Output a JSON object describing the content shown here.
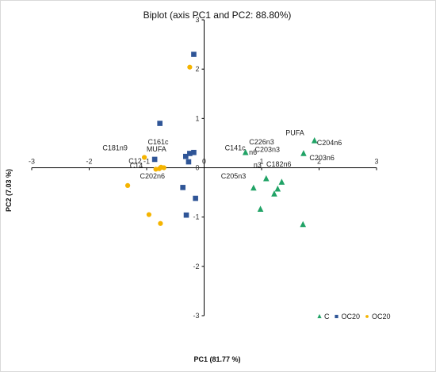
{
  "chart_data": {
    "type": "scatter",
    "title": "Biplot (axis PC1 and PC2: 88.80%)",
    "xlabel": "PC1 (81.77 %)",
    "ylabel": "PC2 (7.03 %)",
    "xlim": [
      -3,
      3
    ],
    "ylim": [
      -3,
      3
    ],
    "xticks": [
      "-3",
      "-2",
      "-1",
      "0",
      "1",
      "2",
      "3"
    ],
    "yticks": [
      "-3",
      "-2",
      "-1",
      "0",
      "1",
      "2",
      "3"
    ],
    "grid": false,
    "legend_position": "bottom-right",
    "series": [
      {
        "name": "C",
        "marker": "triangle",
        "color": "#21a366",
        "points": [
          [
            0.72,
            0.31
          ],
          [
            1.08,
            -0.22
          ],
          [
            0.86,
            -0.41
          ],
          [
            1.35,
            -0.29
          ],
          [
            1.28,
            -0.43
          ],
          [
            1.22,
            -0.53
          ],
          [
            0.98,
            -0.84
          ],
          [
            1.72,
            -1.15
          ],
          [
            1.92,
            0.55
          ],
          [
            1.73,
            0.29
          ]
        ]
      },
      {
        "name": "OC20",
        "marker": "square",
        "color": "#2f5597",
        "points": [
          [
            -0.18,
            2.3
          ],
          [
            -0.77,
            0.9
          ],
          [
            -0.86,
            0.17
          ],
          [
            -0.32,
            0.23
          ],
          [
            -0.25,
            0.29
          ],
          [
            -0.18,
            0.31
          ],
          [
            -0.27,
            0.12
          ],
          [
            -0.37,
            -0.4
          ],
          [
            -0.15,
            -0.62
          ],
          [
            -0.31,
            -0.96
          ]
        ]
      },
      {
        "name": "OC20",
        "marker": "circle",
        "color": "#f5b400",
        "points": [
          [
            -0.25,
            2.04
          ],
          [
            -1.04,
            0.21
          ],
          [
            -0.7,
            0.0
          ],
          [
            -0.75,
            0.01
          ],
          [
            -0.78,
            -0.02
          ],
          [
            -0.84,
            -0.03
          ],
          [
            -1.33,
            -0.36
          ],
          [
            -0.96,
            -0.95
          ],
          [
            -0.76,
            -1.13
          ]
        ]
      }
    ],
    "variables": [
      {
        "label": "C161c",
        "x": -0.8,
        "y": 0.52
      },
      {
        "label": "C181n9",
        "x": -1.55,
        "y": 0.4
      },
      {
        "label": "MUFA",
        "x": -0.83,
        "y": 0.38
      },
      {
        "label": "C12",
        "x": -1.2,
        "y": 0.14
      },
      {
        "label": "C14",
        "x": -1.18,
        "y": 0.04
      },
      {
        "label": "C202n6",
        "x": -0.9,
        "y": -0.17
      },
      {
        "label": "PUFA",
        "x": 1.58,
        "y": 0.71
      },
      {
        "label": "C226n3",
        "x": 1.0,
        "y": 0.52
      },
      {
        "label": "C204n6",
        "x": 2.18,
        "y": 0.51
      },
      {
        "label": "C141c",
        "x": 0.54,
        "y": 0.4
      },
      {
        "label": "C203n3",
        "x": 1.1,
        "y": 0.37
      },
      {
        "label": "n6",
        "x": 0.85,
        "y": 0.31
      },
      {
        "label": "C203n6",
        "x": 2.05,
        "y": 0.2
      },
      {
        "label": "C182n6",
        "x": 1.3,
        "y": 0.07
      },
      {
        "label": "n3",
        "x": 0.93,
        "y": 0.06
      },
      {
        "label": "C205n3",
        "x": 0.51,
        "y": -0.17
      }
    ]
  }
}
